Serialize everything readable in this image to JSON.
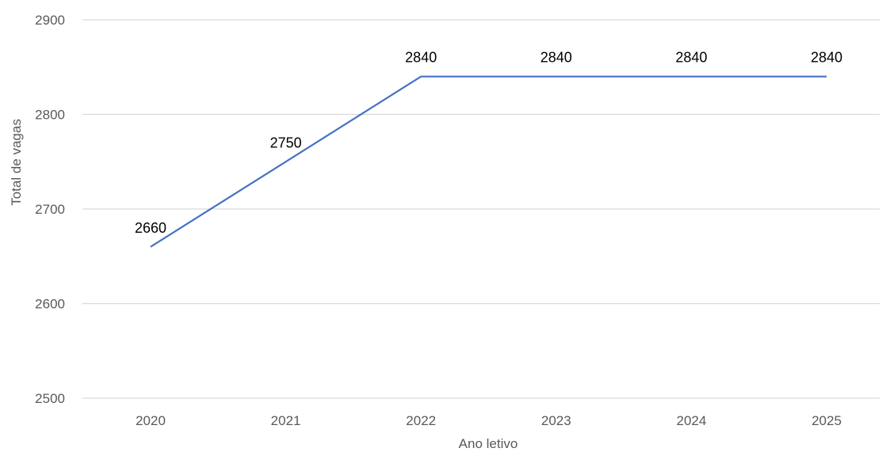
{
  "chart_data": {
    "type": "line",
    "title": "",
    "xlabel": "Ano letivo",
    "ylabel": "Total de vagas",
    "categories": [
      "2020",
      "2021",
      "2022",
      "2023",
      "2024",
      "2025"
    ],
    "series": [
      {
        "values": [
          2660,
          2750,
          2840,
          2840,
          2840,
          2840
        ],
        "color": "#4472c4",
        "data_labels": [
          "2660",
          "2750",
          "2840",
          "2840",
          "2840",
          "2840"
        ]
      }
    ],
    "ylim": [
      2500,
      2900
    ],
    "yticks": [
      2500,
      2600,
      2700,
      2800,
      2900
    ],
    "ytick_labels": [
      "2500",
      "2600",
      "2700",
      "2800",
      "2900"
    ],
    "grid": "horizontal",
    "legend": "none"
  }
}
